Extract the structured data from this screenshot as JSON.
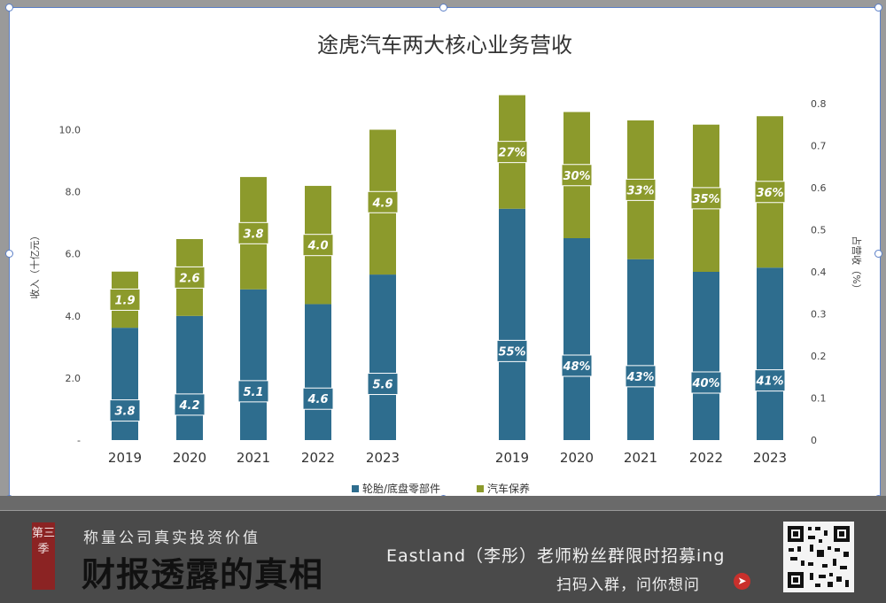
{
  "chart_data": {
    "type": "bar",
    "stacked": true,
    "title": "途虎汽车两大核心业务营收",
    "left_panel": {
      "categories": [
        "2019",
        "2020",
        "2021",
        "2022",
        "2023"
      ],
      "ylabel": "收入（十亿元）",
      "ylim": [
        0,
        10.5
      ],
      "yticks": [
        "-",
        "2.0",
        "4.0",
        "6.0",
        "8.0",
        "10.0"
      ],
      "series": [
        {
          "name": "轮胎/底盘零部件",
          "values": [
            3.8,
            4.2,
            5.1,
            4.6,
            5.6
          ],
          "labels": [
            "3.8",
            "4.2",
            "5.1",
            "4.6",
            "5.6"
          ]
        },
        {
          "name": "汽车保养",
          "values": [
            1.9,
            2.6,
            3.8,
            4.0,
            4.9
          ],
          "labels": [
            "1.9",
            "2.6",
            "3.8",
            "4.0",
            "4.9"
          ]
        }
      ]
    },
    "right_panel": {
      "categories": [
        "2019",
        "2020",
        "2021",
        "2022",
        "2023"
      ],
      "ylabel": "占营收（%）",
      "ylim": [
        0,
        0.8
      ],
      "yticks": [
        "0",
        "0.1",
        "0.2",
        "0.3",
        "0.4",
        "0.5",
        "0.6",
        "0.7",
        "0.8"
      ],
      "series": [
        {
          "name": "轮胎/底盘零部件",
          "values": [
            0.55,
            0.48,
            0.43,
            0.4,
            0.41
          ],
          "labels": [
            "55%",
            "48%",
            "43%",
            "40%",
            "41%"
          ]
        },
        {
          "name": "汽车保养",
          "values": [
            0.27,
            0.3,
            0.33,
            0.35,
            0.36
          ],
          "labels": [
            "27%",
            "30%",
            "33%",
            "35%",
            "36%"
          ]
        }
      ]
    },
    "legend": [
      "轮胎/底盘零部件",
      "汽车保养"
    ],
    "legend_position": "bottom",
    "colors": {
      "tires": "#2e6d8e",
      "maintenance": "#8c9a2c"
    },
    "grid": false
  },
  "banner": {
    "season": "第三季",
    "subtitle": "称量公司真实投资价值",
    "main": "财报透露的真相",
    "right_line1": "Eastland（李彤）老师粉丝群限时招募ing",
    "right_line2": "扫码入群，问你想问",
    "arrow_icon": "arrow-right-circle-icon",
    "qr_icon": "qr-code-icon"
  }
}
